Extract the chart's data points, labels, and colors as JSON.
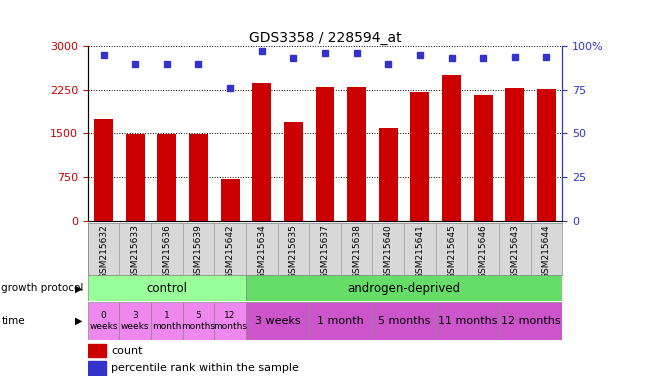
{
  "title": "GDS3358 / 228594_at",
  "samples": [
    "GSM215632",
    "GSM215633",
    "GSM215636",
    "GSM215639",
    "GSM215642",
    "GSM215634",
    "GSM215635",
    "GSM215637",
    "GSM215638",
    "GSM215640",
    "GSM215641",
    "GSM215645",
    "GSM215646",
    "GSM215643",
    "GSM215644"
  ],
  "counts": [
    1750,
    1490,
    1490,
    1490,
    720,
    2370,
    1700,
    2290,
    2290,
    1600,
    2220,
    2500,
    2165,
    2280,
    2270
  ],
  "percentiles": [
    95,
    90,
    90,
    90,
    76,
    97,
    93,
    96,
    96,
    90,
    95,
    93,
    93,
    94,
    94
  ],
  "left_ylim": [
    0,
    3000
  ],
  "left_yticks": [
    0,
    750,
    1500,
    2250,
    3000
  ],
  "right_ylim": [
    0,
    100
  ],
  "right_yticks": [
    0,
    25,
    50,
    75,
    100
  ],
  "right_yticklabels": [
    "0",
    "25",
    "50",
    "75",
    "100%"
  ],
  "bar_color": "#cc0000",
  "dot_color": "#3333cc",
  "bar_width": 0.6,
  "control_color": "#99ff99",
  "androgen_color": "#66dd66",
  "time_color_control": "#ee88ee",
  "time_color_androgen": "#cc55cc",
  "grid_color": "#000000",
  "sample_bg_color": "#d8d8d8",
  "tick_label_color_left": "#cc0000",
  "tick_label_color_right": "#3333cc"
}
